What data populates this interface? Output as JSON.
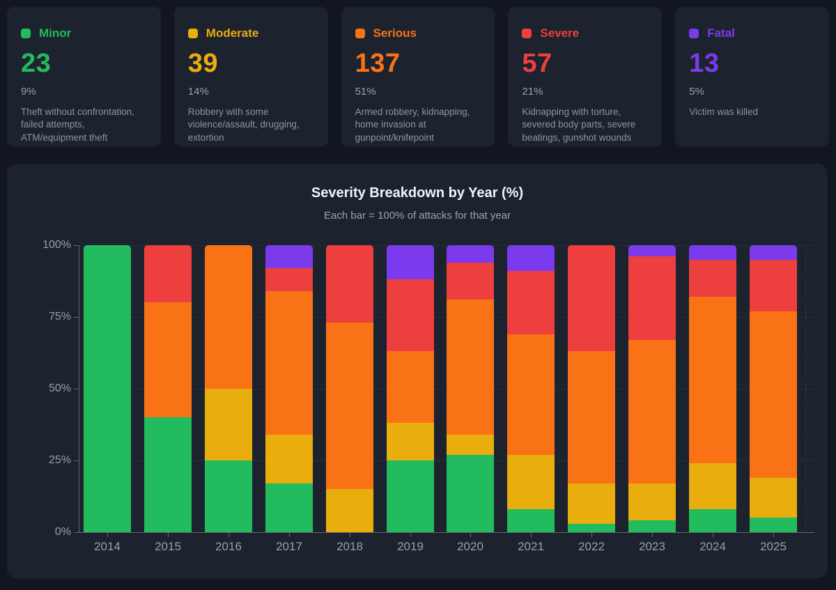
{
  "cards": [
    {
      "label": "Minor",
      "count": "23",
      "percent": "9%",
      "description": "Theft without confrontation, failed attempts, ATM/equipment theft",
      "color": "#22bb5d"
    },
    {
      "label": "Moderate",
      "count": "39",
      "percent": "14%",
      "description": "Robbery with some violence/assault, drugging, extortion",
      "color": "#e9ad0d"
    },
    {
      "label": "Serious",
      "count": "137",
      "percent": "51%",
      "description": "Armed robbery, kidnapping, home invasion at gunpoint/knifepoint",
      "color": "#f97316"
    },
    {
      "label": "Severe",
      "count": "57",
      "percent": "21%",
      "description": "Kidnapping with torture, severed body parts, severe beatings, gunshot wounds",
      "color": "#ee3f3f"
    },
    {
      "label": "Fatal",
      "count": "13",
      "percent": "5%",
      "description": "Victim was killed",
      "color": "#7c3aed"
    }
  ],
  "chart_data": {
    "type": "bar",
    "stacked": true,
    "title": "Severity Breakdown by Year (%)",
    "subtitle": "Each bar = 100% of attacks for that year",
    "categories": [
      "2014",
      "2015",
      "2016",
      "2017",
      "2018",
      "2019",
      "2020",
      "2021",
      "2022",
      "2023",
      "2024",
      "2025"
    ],
    "series": [
      {
        "name": "Minor",
        "color": "#22bb5d",
        "values": [
          100,
          40,
          25,
          17,
          0,
          25,
          27,
          8,
          3,
          4,
          8,
          5
        ]
      },
      {
        "name": "Moderate",
        "color": "#e9ad0d",
        "values": [
          0,
          0,
          25,
          17,
          15,
          13,
          7,
          19,
          14,
          13,
          16,
          14
        ]
      },
      {
        "name": "Serious",
        "color": "#f97316",
        "values": [
          0,
          40,
          50,
          50,
          58,
          25,
          47,
          42,
          46,
          50,
          58,
          58
        ]
      },
      {
        "name": "Severe",
        "color": "#ee3f3f",
        "values": [
          0,
          20,
          0,
          8,
          27,
          25,
          13,
          22,
          37,
          29,
          13,
          18
        ]
      },
      {
        "name": "Fatal",
        "color": "#7c3aed",
        "values": [
          0,
          0,
          0,
          8,
          0,
          12,
          6,
          9,
          0,
          4,
          5,
          5
        ]
      }
    ],
    "y_ticks": [
      "0%",
      "25%",
      "50%",
      "75%",
      "100%"
    ],
    "ylim": [
      0,
      100
    ],
    "grid": "dashed-horizontal",
    "legend_position": "none"
  }
}
